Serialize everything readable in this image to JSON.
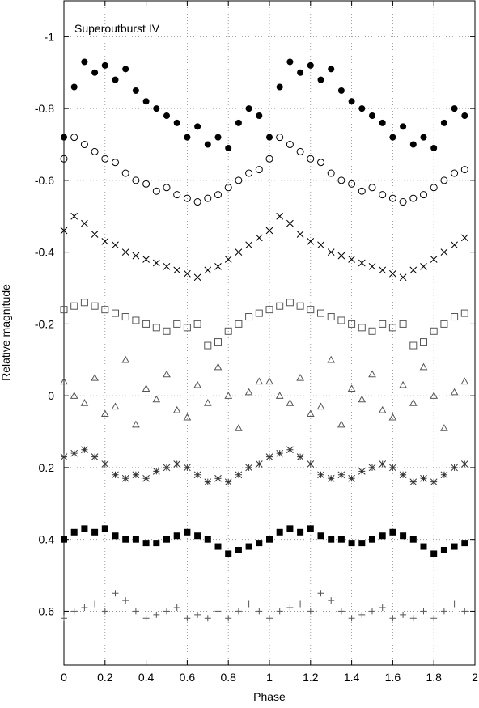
{
  "chart_data": {
    "type": "scatter",
    "annotation": "Superoutburst IV",
    "x_label": "Phase",
    "y_label": "Relative magnitude",
    "xlim": [
      0,
      2
    ],
    "xticks": [
      0,
      0.2,
      0.4,
      0.6,
      0.8,
      1,
      1.2,
      1.4,
      1.6,
      1.8,
      2
    ],
    "ylim": [
      -1.1,
      0.75
    ],
    "y_inverted": true,
    "yticks": [
      -1,
      -0.8,
      -0.6,
      -0.4,
      -0.2,
      0,
      0.2,
      0.4,
      0.6
    ],
    "grid": true,
    "x": [
      0,
      0.05,
      0.1,
      0.15,
      0.2,
      0.25,
      0.3,
      0.35,
      0.4,
      0.45,
      0.5,
      0.55,
      0.6,
      0.65,
      0.7,
      0.75,
      0.8,
      0.85,
      0.9,
      0.95,
      1,
      1.05,
      1.1,
      1.15,
      1.2,
      1.25,
      1.3,
      1.35,
      1.4,
      1.45,
      1.5,
      1.55,
      1.6,
      1.65,
      1.7,
      1.75,
      1.8,
      1.85,
      1.9,
      1.95
    ],
    "series": [
      {
        "marker": "filled-circle",
        "color": "#000000",
        "values": [
          -0.72,
          -0.86,
          -0.93,
          -0.9,
          -0.92,
          -0.88,
          -0.91,
          -0.85,
          -0.82,
          -0.8,
          -0.78,
          -0.76,
          -0.72,
          -0.75,
          -0.7,
          -0.72,
          -0.69,
          -0.76,
          -0.8,
          -0.78,
          -0.72,
          -0.86,
          -0.93,
          -0.9,
          -0.92,
          -0.88,
          -0.91,
          -0.85,
          -0.82,
          -0.8,
          -0.78,
          -0.76,
          -0.72,
          -0.75,
          -0.7,
          -0.72,
          -0.69,
          -0.76,
          -0.8,
          -0.78
        ]
      },
      {
        "marker": "open-circle",
        "color": "#000000",
        "values": [
          -0.66,
          -0.72,
          -0.7,
          -0.68,
          -0.66,
          -0.65,
          -0.62,
          -0.6,
          -0.59,
          -0.57,
          -0.58,
          -0.56,
          -0.55,
          -0.54,
          -0.55,
          -0.56,
          -0.58,
          -0.6,
          -0.62,
          -0.63,
          -0.66,
          -0.72,
          -0.7,
          -0.68,
          -0.66,
          -0.65,
          -0.62,
          -0.6,
          -0.59,
          -0.57,
          -0.58,
          -0.56,
          -0.55,
          -0.54,
          -0.55,
          -0.56,
          -0.58,
          -0.6,
          -0.62,
          -0.63
        ]
      },
      {
        "marker": "cross",
        "color": "#000000",
        "values": [
          -0.46,
          -0.5,
          -0.48,
          -0.45,
          -0.43,
          -0.42,
          -0.4,
          -0.39,
          -0.38,
          -0.37,
          -0.36,
          -0.35,
          -0.34,
          -0.33,
          -0.35,
          -0.36,
          -0.38,
          -0.4,
          -0.42,
          -0.44,
          -0.46,
          -0.5,
          -0.48,
          -0.45,
          -0.43,
          -0.42,
          -0.4,
          -0.39,
          -0.38,
          -0.37,
          -0.36,
          -0.35,
          -0.34,
          -0.33,
          -0.35,
          -0.36,
          -0.38,
          -0.4,
          -0.42,
          -0.44
        ]
      },
      {
        "marker": "open-square",
        "color": "#555555",
        "values": [
          -0.24,
          -0.25,
          -0.26,
          -0.25,
          -0.24,
          -0.23,
          -0.22,
          -0.21,
          -0.2,
          -0.19,
          -0.18,
          -0.2,
          -0.19,
          -0.2,
          -0.14,
          -0.15,
          -0.18,
          -0.2,
          -0.22,
          -0.23,
          -0.24,
          -0.25,
          -0.26,
          -0.25,
          -0.24,
          -0.23,
          -0.22,
          -0.21,
          -0.2,
          -0.19,
          -0.18,
          -0.2,
          -0.19,
          -0.2,
          -0.14,
          -0.15,
          -0.18,
          -0.2,
          -0.22,
          -0.23
        ]
      },
      {
        "marker": "open-triangle",
        "color": "#555555",
        "values": [
          -0.04,
          0,
          0.02,
          -0.05,
          0.05,
          0.03,
          -0.1,
          0.08,
          -0.02,
          0.01,
          -0.06,
          0.04,
          0.06,
          -0.03,
          0.02,
          -0.08,
          0,
          0.09,
          -0.01,
          -0.04,
          -0.04,
          0,
          0.02,
          -0.05,
          0.05,
          0.03,
          -0.1,
          0.08,
          -0.02,
          0.01,
          -0.06,
          0.04,
          0.06,
          -0.03,
          0.02,
          -0.08,
          0,
          0.09,
          -0.01,
          -0.04
        ]
      },
      {
        "marker": "asterisk",
        "color": "#333333",
        "values": [
          0.17,
          0.16,
          0.15,
          0.17,
          0.19,
          0.22,
          0.23,
          0.22,
          0.23,
          0.21,
          0.2,
          0.19,
          0.2,
          0.22,
          0.24,
          0.23,
          0.24,
          0.22,
          0.2,
          0.19,
          0.17,
          0.16,
          0.15,
          0.17,
          0.19,
          0.22,
          0.23,
          0.22,
          0.23,
          0.21,
          0.2,
          0.19,
          0.2,
          0.22,
          0.24,
          0.23,
          0.24,
          0.22,
          0.2,
          0.19
        ]
      },
      {
        "marker": "filled-square",
        "color": "#000000",
        "values": [
          0.4,
          0.38,
          0.37,
          0.38,
          0.37,
          0.39,
          0.4,
          0.4,
          0.41,
          0.41,
          0.4,
          0.39,
          0.38,
          0.39,
          0.4,
          0.42,
          0.44,
          0.43,
          0.42,
          0.41,
          0.4,
          0.38,
          0.37,
          0.38,
          0.37,
          0.39,
          0.4,
          0.4,
          0.41,
          0.41,
          0.4,
          0.39,
          0.38,
          0.39,
          0.4,
          0.42,
          0.44,
          0.43,
          0.42,
          0.41
        ]
      },
      {
        "marker": "plus",
        "color": "#555555",
        "values": [
          0.62,
          0.6,
          0.59,
          0.58,
          0.6,
          0.55,
          0.57,
          0.6,
          0.62,
          0.61,
          0.6,
          0.59,
          0.62,
          0.61,
          0.62,
          0.6,
          0.62,
          0.6,
          0.58,
          0.6,
          0.62,
          0.6,
          0.59,
          0.58,
          0.6,
          0.55,
          0.57,
          0.6,
          0.62,
          0.61,
          0.6,
          0.59,
          0.62,
          0.61,
          0.62,
          0.6,
          0.62,
          0.6,
          0.58,
          0.6
        ]
      }
    ]
  }
}
